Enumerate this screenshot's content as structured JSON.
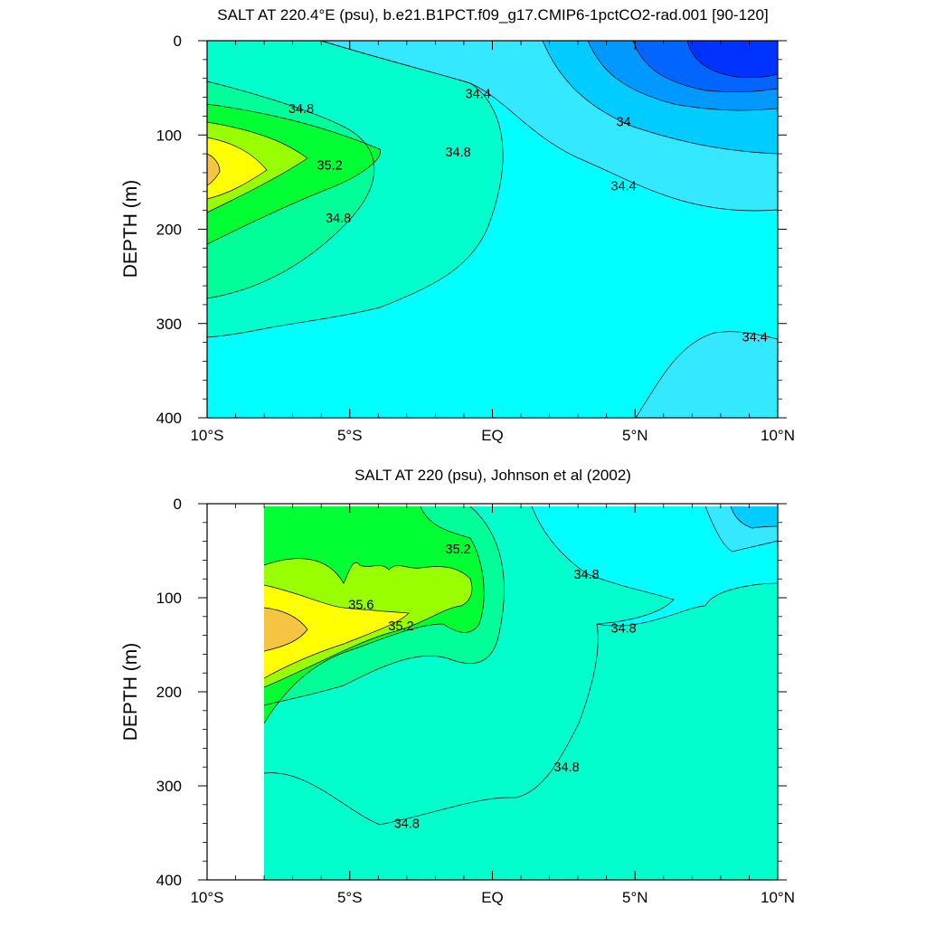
{
  "chart_data": [
    {
      "type": "contour",
      "title": "SALT AT 220.4°E (psu), b.e21.B1PCT.f09_g17.CMIP6-1pctCO2-rad.001 [90-120]",
      "ylabel": "DEPTH (m)",
      "xlabel": "",
      "x_ticks": [
        "10°S",
        "5°S",
        "EQ",
        "5°N",
        "10°N"
      ],
      "y_ticks": [
        "0",
        "100",
        "200",
        "300",
        "400"
      ],
      "xlim": [
        -10,
        10
      ],
      "ylim": [
        400,
        0
      ],
      "contour_interval": 0.2,
      "levels_range": [
        33.4,
        35.6
      ],
      "contour_labels": [
        {
          "text": "34.8",
          "x": -6.7,
          "y": 72
        },
        {
          "text": "35.2",
          "x": -5.7,
          "y": 132
        },
        {
          "text": "34.8",
          "x": -5.4,
          "y": 188
        },
        {
          "text": "34.8",
          "x": -1.2,
          "y": 118
        },
        {
          "text": "34.4",
          "x": -0.5,
          "y": 56
        },
        {
          "text": "34",
          "x": 4.6,
          "y": 86
        },
        {
          "text": "34.4",
          "x": 4.6,
          "y": 154
        },
        {
          "text": "34.4",
          "x": 9.2,
          "y": 314
        }
      ]
    },
    {
      "type": "contour",
      "title": "SALT AT 220 (psu), Johnson et al (2002)",
      "ylabel": "DEPTH (m)",
      "xlabel": "",
      "x_ticks": [
        "10°S",
        "5°S",
        "EQ",
        "5°N",
        "10°N"
      ],
      "y_ticks": [
        "0",
        "100",
        "200",
        "300",
        "400"
      ],
      "xlim": [
        -10,
        10
      ],
      "ylim": [
        400,
        0
      ],
      "data_start_x": -8,
      "contour_interval": 0.2,
      "levels_range": [
        34.2,
        35.8
      ],
      "contour_labels": [
        {
          "text": "35.2",
          "x": -1.2,
          "y": 48
        },
        {
          "text": "34.8",
          "x": 3.3,
          "y": 75
        },
        {
          "text": "35.6",
          "x": -4.6,
          "y": 107
        },
        {
          "text": "35.2",
          "x": -3.2,
          "y": 130
        },
        {
          "text": "34.8",
          "x": 4.6,
          "y": 132
        },
        {
          "text": "34.8",
          "x": 2.6,
          "y": 280
        },
        {
          "text": "34.8",
          "x": -3.0,
          "y": 340
        }
      ]
    }
  ]
}
